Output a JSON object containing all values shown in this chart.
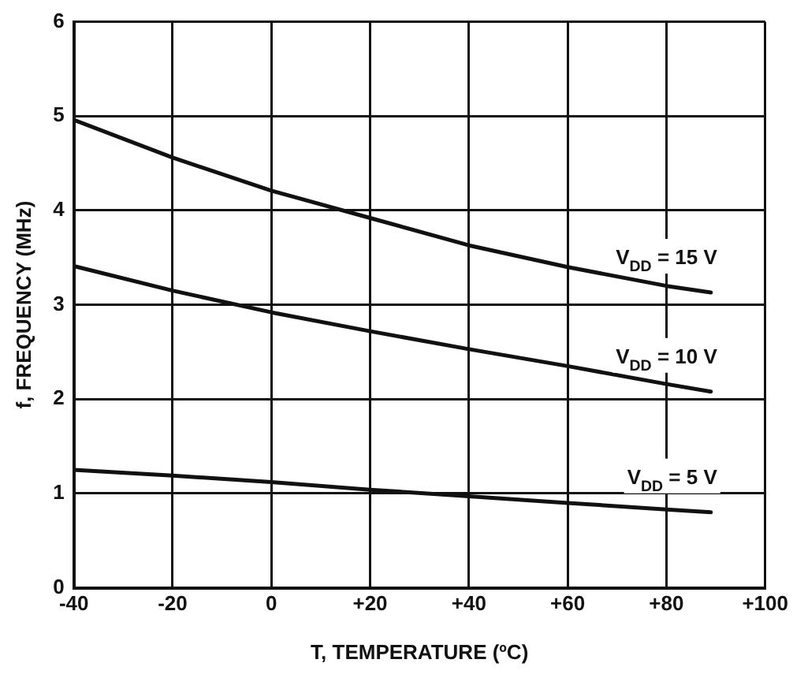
{
  "chart_data": {
    "type": "line",
    "xlabel": "T, TEMPERATURE (ºC)",
    "ylabel": "f, FREQUENCY (MHz)",
    "x": [
      -40,
      -20,
      0,
      20,
      40,
      60,
      80,
      89
    ],
    "series": [
      {
        "name": "V$_{DD}$ = 15 V",
        "color": "#111111",
        "values": [
          4.96,
          4.56,
          4.21,
          3.92,
          3.63,
          3.4,
          3.2,
          3.13
        ]
      },
      {
        "name": "V$_{DD}$ = 10 V",
        "color": "#111111",
        "values": [
          3.41,
          3.15,
          2.92,
          2.72,
          2.53,
          2.35,
          2.16,
          2.08
        ]
      },
      {
        "name": "V$_{DD}$ = 5 V",
        "color": "#111111",
        "values": [
          1.25,
          1.19,
          1.12,
          1.04,
          0.97,
          0.9,
          0.83,
          0.8
        ]
      }
    ],
    "xlim": [
      -40,
      100
    ],
    "xticks": [
      -40,
      -20,
      0,
      {
        "value": 20,
        "label": "+20"
      },
      {
        "value": 40,
        "label": "+40"
      },
      {
        "value": 60,
        "label": "+60"
      },
      {
        "value": 80,
        "label": "+80"
      },
      {
        "value": 100,
        "label": "+100"
      }
    ],
    "ylim": [
      0,
      6
    ],
    "yticks": [
      0,
      1,
      2,
      3,
      4,
      5,
      6
    ],
    "grid": true,
    "legend": false,
    "marker": "none",
    "line_style": "solid"
  }
}
